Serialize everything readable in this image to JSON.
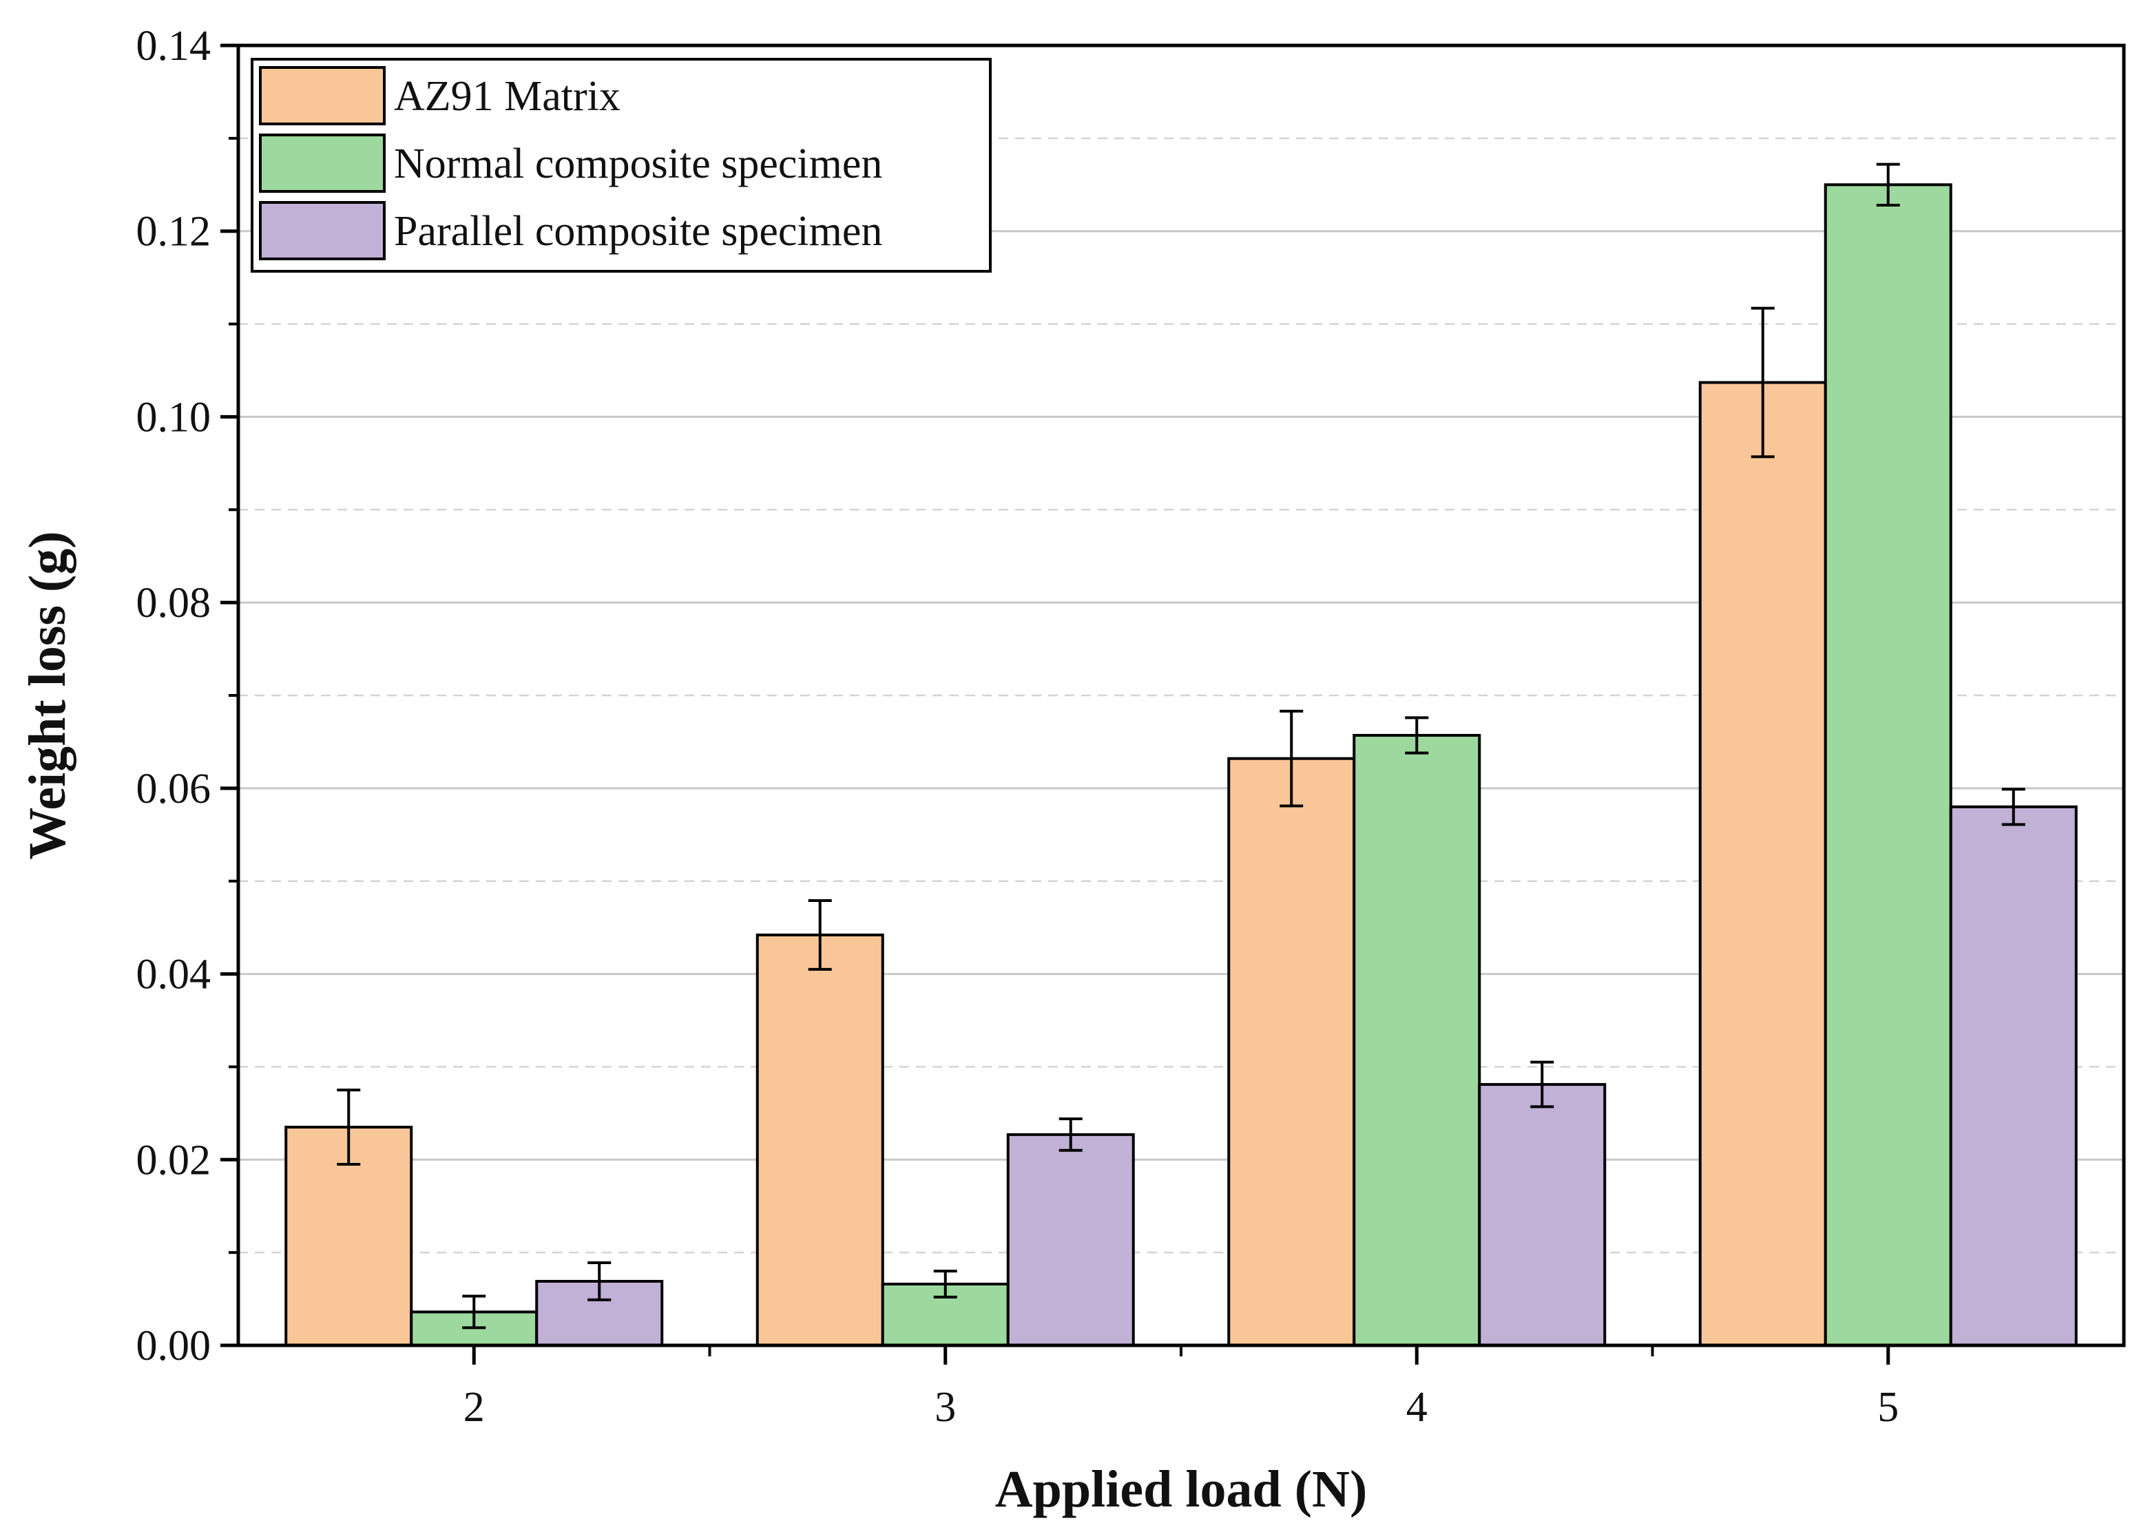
{
  "chart_data": {
    "type": "bar",
    "title": "",
    "xlabel": "Applied load (N)",
    "ylabel": "Weight loss (g)",
    "categories": [
      "2",
      "3",
      "4",
      "5"
    ],
    "ylim": [
      0,
      0.14
    ],
    "yticks": [
      "0.00",
      "0.02",
      "0.04",
      "0.06",
      "0.08",
      "0.10",
      "0.12",
      "0.14"
    ],
    "ytick_values": [
      0,
      0.02,
      0.04,
      0.06,
      0.08,
      0.1,
      0.12,
      0.14
    ],
    "grid": "horizontal",
    "legend_position": "top-left",
    "series": [
      {
        "name": "AZ91 Matrix",
        "color": "#f9c797",
        "values": [
          0.0235,
          0.0442,
          0.0632,
          0.1037
        ],
        "errors": [
          0.004,
          0.0037,
          0.0051,
          0.008
        ]
      },
      {
        "name": "Normal composite specimen",
        "color": "#9dd89e",
        "values": [
          0.0036,
          0.0066,
          0.0657,
          0.125
        ],
        "errors": [
          0.0017,
          0.0014,
          0.0019,
          0.0022
        ]
      },
      {
        "name": "Parallel composite specimen",
        "color": "#c1b1d6",
        "values": [
          0.0069,
          0.0227,
          0.0281,
          0.058
        ],
        "errors": [
          0.002,
          0.0017,
          0.0024,
          0.0019
        ]
      }
    ]
  }
}
